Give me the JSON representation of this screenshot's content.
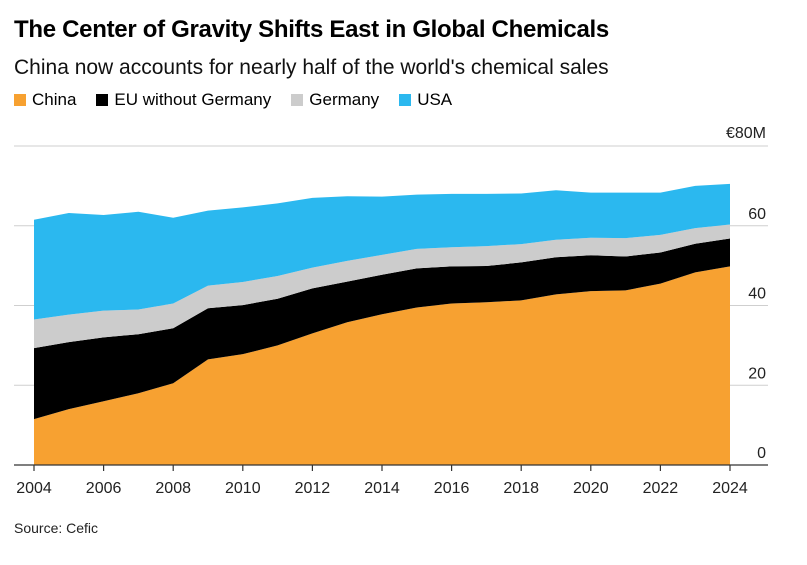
{
  "chart_data": {
    "type": "area",
    "stacked": true,
    "title": "The Center of Gravity Shifts East in Global Chemicals",
    "subtitle": "China now accounts for nearly half of the world's chemical sales",
    "source": "Source: Cefic",
    "y_unit_label": "€80M",
    "ylim": [
      0,
      80
    ],
    "yticks": [
      0,
      20,
      40,
      60
    ],
    "xlim": [
      2004,
      2024
    ],
    "xticks": [
      2004,
      2006,
      2008,
      2010,
      2012,
      2014,
      2016,
      2018,
      2020,
      2022,
      2024
    ],
    "grid": true,
    "legend_position": "top-left",
    "x": [
      2004,
      2005,
      2006,
      2007,
      2008,
      2009,
      2010,
      2011,
      2012,
      2013,
      2014,
      2015,
      2016,
      2017,
      2018,
      2019,
      2020,
      2021,
      2022,
      2023,
      2024
    ],
    "series": [
      {
        "name": "China",
        "color": "#f7a131",
        "values": [
          11.5,
          14,
          16,
          18,
          20.5,
          26.5,
          27.8,
          30,
          33,
          35.8,
          37.8,
          39.5,
          40.5,
          40.8,
          41.3,
          42.8,
          43.6,
          43.8,
          45.5,
          48.3,
          49.8
        ]
      },
      {
        "name": "EU without Germany",
        "color": "#000000",
        "values": [
          17.8,
          16.8,
          16,
          14.8,
          13.8,
          12.8,
          12.3,
          11.7,
          11.3,
          10.2,
          9.9,
          9.8,
          9.3,
          9.1,
          9.5,
          9.3,
          9,
          8.5,
          7.8,
          7.2,
          7
        ]
      },
      {
        "name": "Germany",
        "color": "#cccccc",
        "values": [
          7.2,
          6.9,
          6.7,
          6.2,
          6.2,
          5.7,
          5.8,
          5.7,
          5.2,
          5.2,
          5,
          4.9,
          4.8,
          5,
          4.6,
          4.4,
          4.4,
          4.6,
          4.4,
          3.9,
          3.5
        ]
      },
      {
        "name": "USA",
        "color": "#2bb8ef",
        "values": [
          25,
          25.5,
          24,
          24.5,
          21.5,
          18.8,
          18.7,
          18.2,
          17.5,
          16.2,
          14.6,
          13.6,
          13.4,
          13.1,
          12.7,
          12.4,
          11.3,
          11.4,
          10.6,
          10.6,
          10.2
        ]
      }
    ]
  }
}
